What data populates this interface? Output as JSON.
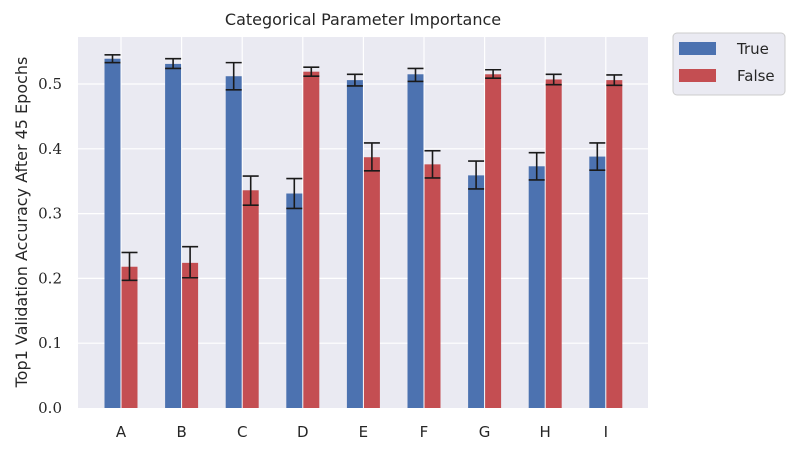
{
  "chart_data": {
    "type": "bar",
    "title": "Categorical Parameter Importance",
    "xlabel": "",
    "ylabel": "Top1 Validation Accuracy After 45 Epochs",
    "categories": [
      "A",
      "B",
      "C",
      "D",
      "E",
      "F",
      "G",
      "H",
      "I"
    ],
    "ylim": [
      0,
      0.57
    ],
    "yticks": [
      "0.0",
      "0.1",
      "0.2",
      "0.3",
      "0.4",
      "0.5"
    ],
    "grid": true,
    "legend_position": "outside-top-right",
    "series": [
      {
        "name": "True",
        "color": "#4c72b0",
        "values": [
          0.539,
          0.531,
          0.512,
          0.331,
          0.506,
          0.515,
          0.359,
          0.373,
          0.388
        ],
        "err_low": [
          0.533,
          0.524,
          0.491,
          0.308,
          0.497,
          0.504,
          0.338,
          0.352,
          0.367
        ],
        "err_high": [
          0.545,
          0.539,
          0.533,
          0.354,
          0.515,
          0.524,
          0.381,
          0.394,
          0.409
        ]
      },
      {
        "name": "False",
        "color": "#c44e52",
        "values": [
          0.218,
          0.224,
          0.336,
          0.519,
          0.387,
          0.376,
          0.515,
          0.507,
          0.506
        ],
        "err_low": [
          0.197,
          0.201,
          0.313,
          0.512,
          0.366,
          0.355,
          0.509,
          0.499,
          0.498
        ],
        "err_high": [
          0.24,
          0.249,
          0.358,
          0.526,
          0.409,
          0.397,
          0.522,
          0.515,
          0.514
        ]
      }
    ]
  }
}
